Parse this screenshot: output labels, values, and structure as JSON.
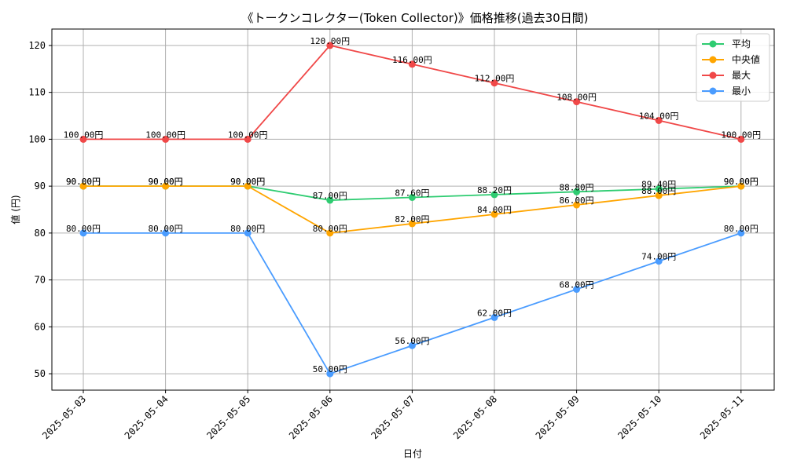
{
  "chart_data": {
    "type": "line",
    "title": "《トークンコレクター(Token Collector)》価格推移(過去30日間)",
    "xlabel": "日付",
    "ylabel": "値 (円)",
    "categories": [
      "2025-05-03",
      "2025-05-04",
      "2025-05-05",
      "2025-05-06",
      "2025-05-07",
      "2025-05-08",
      "2025-05-09",
      "2025-05-10",
      "2025-05-11"
    ],
    "ylim": [
      46.5,
      123.5
    ],
    "yticks": [
      50,
      60,
      70,
      80,
      90,
      100,
      110,
      120
    ],
    "grid": true,
    "legend_position": "top-right",
    "label_suffix": "円",
    "series": [
      {
        "name": "平均",
        "color": "#2ecc71",
        "values": [
          90,
          90,
          90,
          87,
          87.6,
          88.2,
          88.8,
          89.4,
          90
        ]
      },
      {
        "name": "中央値",
        "color": "#ffa500",
        "values": [
          90,
          90,
          90,
          80,
          82,
          84,
          86,
          88,
          90
        ]
      },
      {
        "name": "最大",
        "color": "#f04848",
        "values": [
          100,
          100,
          100,
          120,
          116,
          112,
          108,
          104,
          100
        ]
      },
      {
        "name": "最小",
        "color": "#4a9cff",
        "values": [
          80,
          80,
          80,
          50,
          56,
          62,
          68,
          74,
          80
        ]
      }
    ]
  }
}
